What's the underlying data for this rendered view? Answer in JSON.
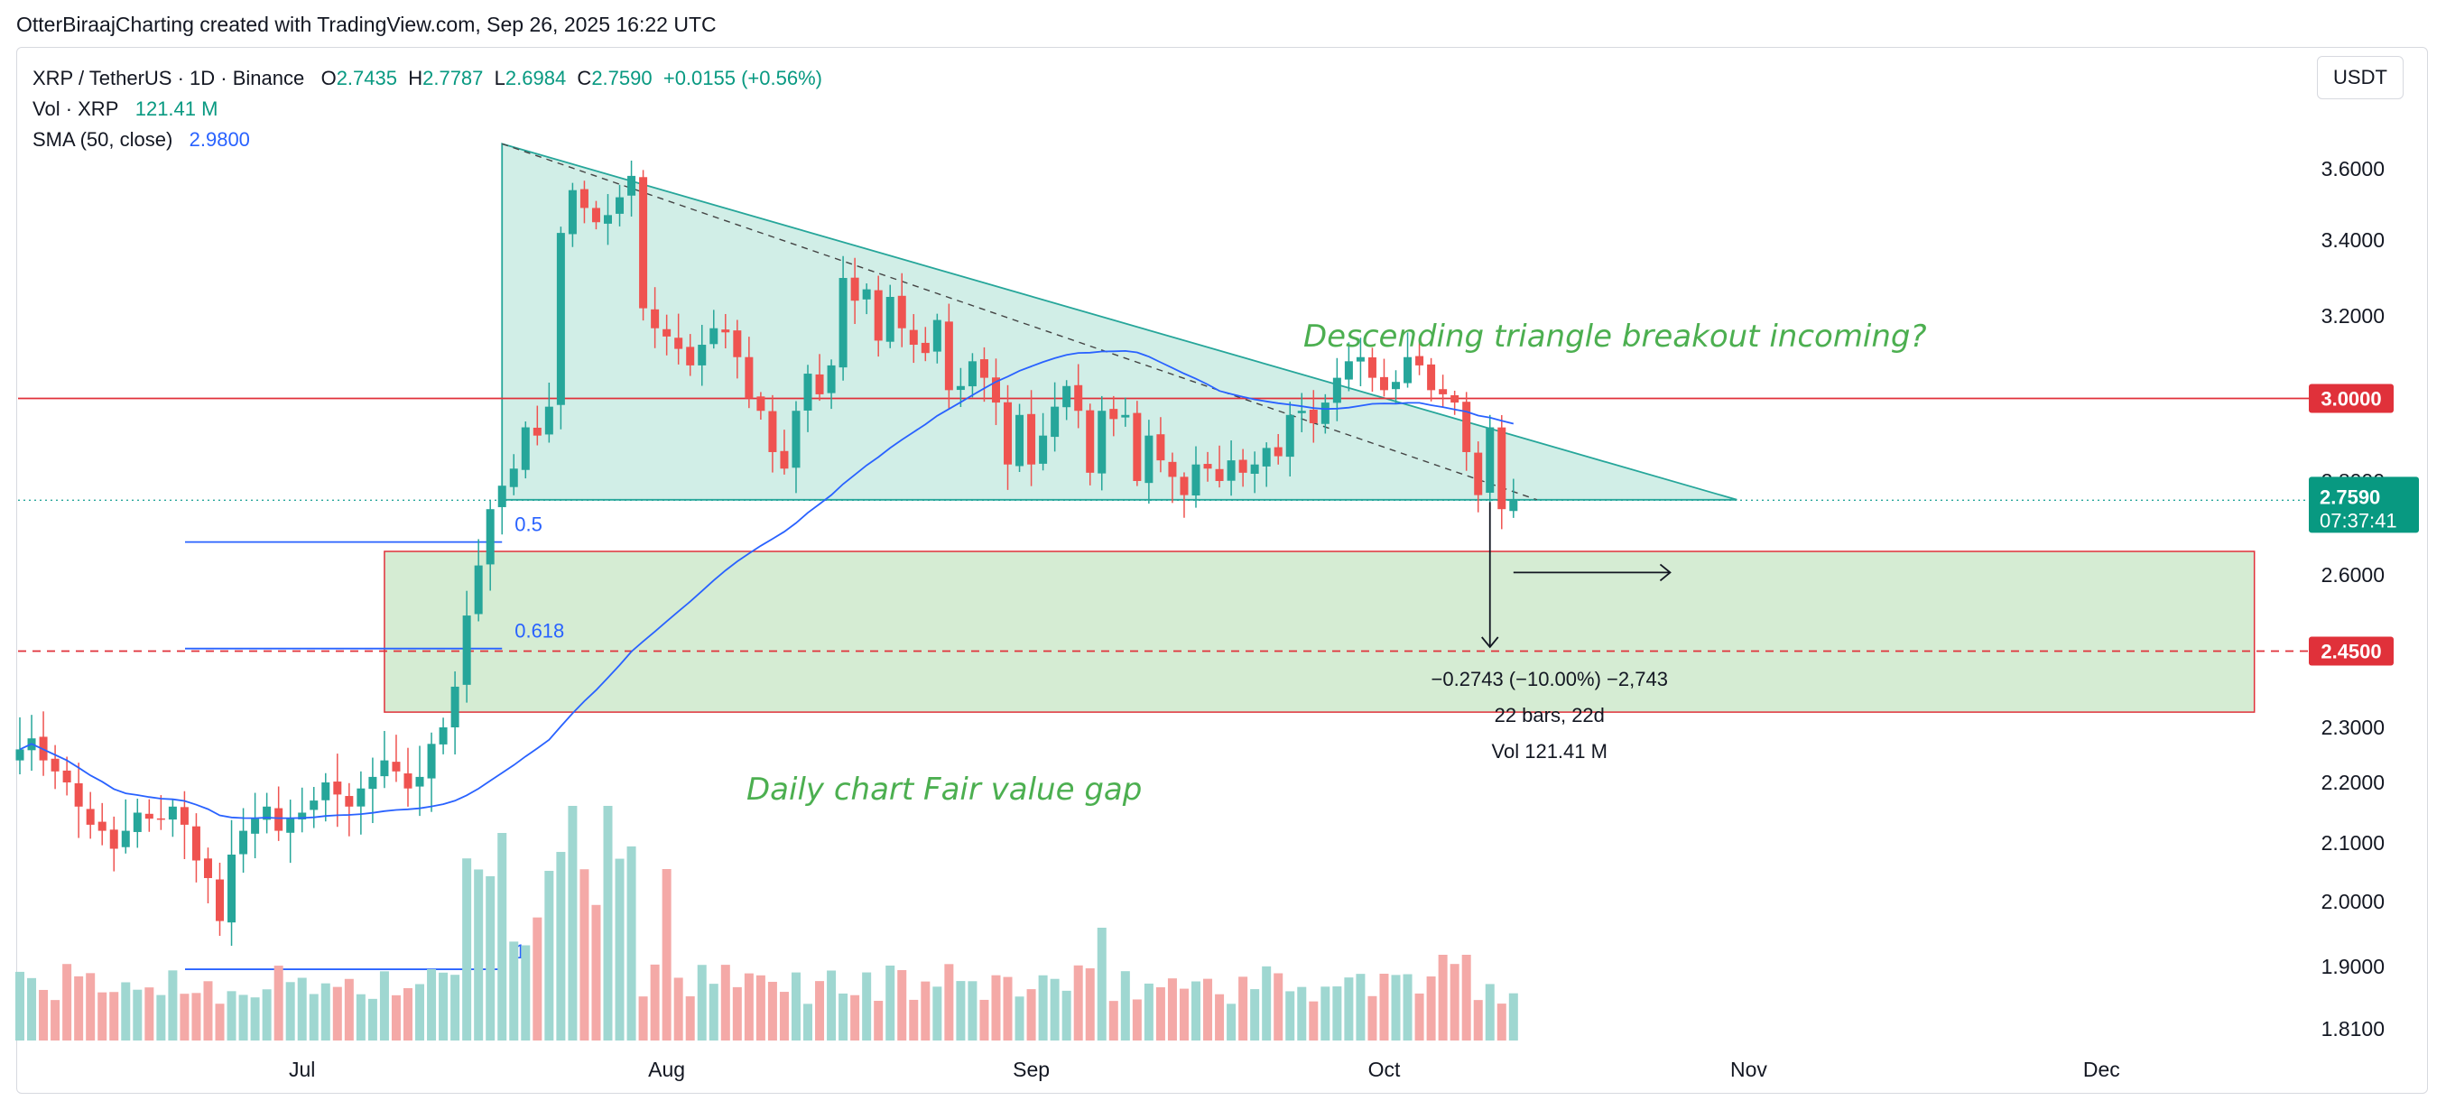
{
  "header": {
    "attribution": "OtterBiraajCharting created with TradingView.com, Sep 26, 2025 16:22 UTC"
  },
  "legend": {
    "symbol": "XRP / TetherUS · 1D · Binance",
    "o_label": "O",
    "o": "2.7435",
    "h_label": "H",
    "h": "2.7787",
    "l_label": "L",
    "l": "2.6984",
    "c_label": "C",
    "c": "2.7590",
    "change": "+0.0155 (+0.56%)",
    "vol_label": "Vol · XRP",
    "vol": "121.41 M",
    "sma_label": "SMA (50, close)",
    "sma": "2.9800"
  },
  "unit_button": "USDT",
  "colors": {
    "up": "#26a69a",
    "down": "#ef5350",
    "vol_up": "#9fd7d1",
    "vol_down": "#f4a9a7",
    "sma": "#2962ff",
    "triangle_fill": "#d1eee7",
    "fvg_fill": "#d5ecd3",
    "level": "#e0313a"
  },
  "chart_data": {
    "type": "candlestick",
    "symbol": "XRP / TetherUS",
    "interval": "1D",
    "y_ticks": [
      "3.6000",
      "3.4000",
      "3.2000",
      "2.8000",
      "2.6000",
      "2.3000",
      "2.2000",
      "2.1000",
      "2.0000",
      "1.9000",
      "1.8100"
    ],
    "y_tick_values": [
      3.6,
      3.4,
      3.2,
      2.8,
      2.6,
      2.3,
      2.2,
      2.1,
      2.0,
      1.9,
      1.81
    ],
    "x_labels": [
      "Jul",
      "Aug",
      "Sep",
      "Oct",
      "Nov",
      "Dec"
    ],
    "x_label_dates": [
      "2025-07-01",
      "2025-08-01",
      "2025-09-01",
      "2025-10-01",
      "2025-11-01",
      "2025-12-01"
    ],
    "start_date": "2025-06-07",
    "close_series": [
      2.26,
      2.28,
      2.24,
      2.22,
      2.2,
      2.16,
      2.13,
      2.12,
      2.09,
      2.12,
      2.15,
      2.14,
      2.14,
      2.16,
      2.13,
      2.07,
      2.04,
      1.97,
      2.08,
      2.12,
      2.14,
      2.16,
      2.12,
      2.14,
      2.15,
      2.17,
      2.2,
      2.18,
      2.16,
      2.19,
      2.21,
      2.24,
      2.22,
      2.19,
      2.21,
      2.27,
      2.3,
      2.38,
      2.52,
      2.62,
      2.74,
      2.79,
      2.83,
      2.93,
      2.91,
      2.98,
      3.42,
      3.54,
      3.49,
      3.45,
      3.47,
      3.52,
      3.58,
      3.22,
      3.17,
      3.15,
      3.12,
      3.08,
      3.13,
      3.17,
      3.16,
      3.1,
      3.0,
      2.97,
      2.87,
      2.83,
      2.97,
      3.06,
      3.01,
      3.08,
      3.3,
      3.24,
      3.27,
      3.14,
      3.25,
      3.17,
      3.13,
      3.11,
      3.19,
      3.02,
      3.03,
      3.09,
      3.05,
      2.99,
      2.84,
      2.96,
      2.84,
      2.91,
      2.98,
      3.03,
      2.97,
      2.82,
      2.97,
      2.95,
      2.96,
      2.8,
      2.91,
      2.85,
      2.81,
      2.77,
      2.84,
      2.83,
      2.8,
      2.85,
      2.82,
      2.84,
      2.88,
      2.86,
      2.96,
      2.97,
      2.94,
      2.99,
      3.05,
      3.09,
      3.1,
      3.05,
      3.02,
      3.04,
      3.1,
      3.08,
      3.02,
      3.01,
      2.99,
      2.87,
      2.77,
      2.93,
      2.74,
      2.76
    ],
    "volume": {
      "label": "Vol · XRP",
      "last": "121.41 M"
    },
    "sma": {
      "label": "SMA (50, close)",
      "last": 2.98
    },
    "current_price": {
      "value": 2.759,
      "label": "2.7590",
      "countdown": "07:37:41"
    },
    "levels": [
      {
        "price": 3.0,
        "label": "3.0000",
        "style": "solid"
      },
      {
        "price": 2.45,
        "label": "2.4500",
        "style": "dashed"
      }
    ],
    "fib_levels": [
      {
        "label": "0.5"
      },
      {
        "label": "0.618"
      },
      {
        "label": "1"
      }
    ],
    "drawings": {
      "descending_triangle": {
        "top_start_date": "2025-07-18",
        "top_start_price": 3.67,
        "apex_date": "2025-10-31",
        "base_price": 2.76
      },
      "fair_value_gap": {
        "from_date": "2025-07-08",
        "to_date": "2025-12-14",
        "top": 2.65,
        "bottom": 2.33
      },
      "measure": {
        "text1": "−0.2743 (−10.00%) −2,743",
        "text2": "22 bars, 22d",
        "text3": "Vol 121.41 M"
      }
    },
    "annotations": [
      "Descending triangle breakout incoming?",
      "Daily chart Fair value gap"
    ]
  }
}
